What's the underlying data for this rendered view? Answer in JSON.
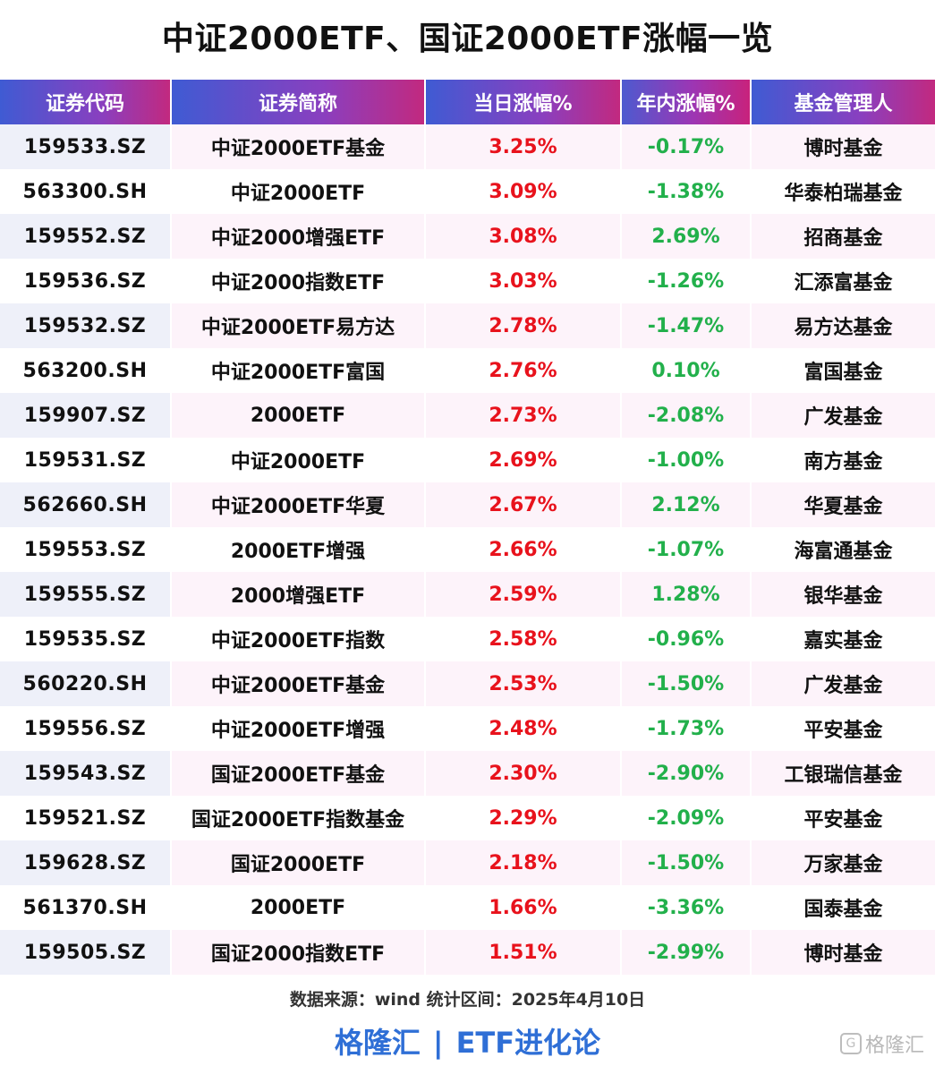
{
  "title": "中证2000ETF、国证2000ETF涨幅一览",
  "headers": [
    "证券代码",
    "证券简称",
    "当日涨幅%",
    "年内涨幅%",
    "基金管理人"
  ],
  "rows": [
    {
      "code": "159533.SZ",
      "name": "中证2000ETF基金",
      "day": "3.25%",
      "ytd": "-0.17%",
      "manager": "博时基金"
    },
    {
      "code": "563300.SH",
      "name": "中证2000ETF",
      "day": "3.09%",
      "ytd": "-1.38%",
      "manager": "华泰柏瑞基金"
    },
    {
      "code": "159552.SZ",
      "name": "中证2000增强ETF",
      "day": "3.08%",
      "ytd": "2.69%",
      "manager": "招商基金"
    },
    {
      "code": "159536.SZ",
      "name": "中证2000指数ETF",
      "day": "3.03%",
      "ytd": "-1.26%",
      "manager": "汇添富基金"
    },
    {
      "code": "159532.SZ",
      "name": "中证2000ETF易方达",
      "day": "2.78%",
      "ytd": "-1.47%",
      "manager": "易方达基金"
    },
    {
      "code": "563200.SH",
      "name": "中证2000ETF富国",
      "day": "2.76%",
      "ytd": "0.10%",
      "manager": "富国基金"
    },
    {
      "code": "159907.SZ",
      "name": "2000ETF",
      "day": "2.73%",
      "ytd": "-2.08%",
      "manager": "广发基金"
    },
    {
      "code": "159531.SZ",
      "name": "中证2000ETF",
      "day": "2.69%",
      "ytd": "-1.00%",
      "manager": "南方基金"
    },
    {
      "code": "562660.SH",
      "name": "中证2000ETF华夏",
      "day": "2.67%",
      "ytd": "2.12%",
      "manager": "华夏基金"
    },
    {
      "code": "159553.SZ",
      "name": "2000ETF增强",
      "day": "2.66%",
      "ytd": "-1.07%",
      "manager": "海富通基金"
    },
    {
      "code": "159555.SZ",
      "name": "2000增强ETF",
      "day": "2.59%",
      "ytd": "1.28%",
      "manager": "银华基金"
    },
    {
      "code": "159535.SZ",
      "name": "中证2000ETF指数",
      "day": "2.58%",
      "ytd": "-0.96%",
      "manager": "嘉实基金"
    },
    {
      "code": "560220.SH",
      "name": "中证2000ETF基金",
      "day": "2.53%",
      "ytd": "-1.50%",
      "manager": "广发基金"
    },
    {
      "code": "159556.SZ",
      "name": "中证2000ETF增强",
      "day": "2.48%",
      "ytd": "-1.73%",
      "manager": "平安基金"
    },
    {
      "code": "159543.SZ",
      "name": "国证2000ETF基金",
      "day": "2.30%",
      "ytd": "-2.90%",
      "manager": "工银瑞信基金"
    },
    {
      "code": "159521.SZ",
      "name": "国证2000ETF指数基金",
      "day": "2.29%",
      "ytd": "-2.09%",
      "manager": "平安基金"
    },
    {
      "code": "159628.SZ",
      "name": "国证2000ETF",
      "day": "2.18%",
      "ytd": "-1.50%",
      "manager": "万家基金"
    },
    {
      "code": "561370.SH",
      "name": "2000ETF",
      "day": "1.66%",
      "ytd": "-3.36%",
      "manager": "国泰基金"
    },
    {
      "code": "159505.SZ",
      "name": "国证2000指数ETF",
      "day": "1.51%",
      "ytd": "-2.99%",
      "manager": "博时基金"
    }
  ],
  "source": "数据来源：wind  统计区间：2025年4月10日",
  "footer": {
    "left": "格隆汇",
    "divider": "|",
    "right": "ETF进化论"
  },
  "watermark": {
    "icon": "G",
    "text": "格隆汇"
  },
  "colors": {
    "up": "#e8121c",
    "down": "#22b04b",
    "accent": "#2f6fd6"
  }
}
